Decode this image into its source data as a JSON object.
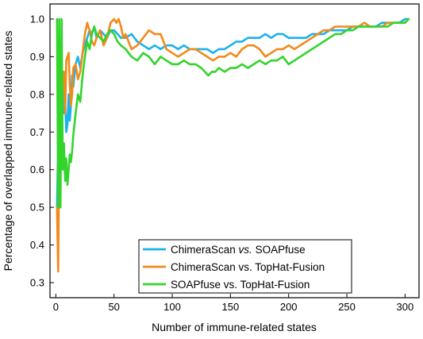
{
  "chart_data": {
    "type": "line",
    "xlabel": "Number of immune-related states",
    "ylabel": "Percentage of overlapped immune-related states",
    "xlim": [
      -5,
      312
    ],
    "ylim": [
      0.26,
      1.04
    ],
    "xticks": [
      0,
      50,
      100,
      150,
      200,
      250,
      300
    ],
    "yticks": [
      0.3,
      0.4,
      0.5,
      0.6,
      0.7,
      0.8,
      0.9,
      1.0
    ],
    "ytick_labels": [
      "0.3",
      "0.4",
      "0.5",
      "0.6",
      "0.7",
      "0.8",
      "0.9",
      "1.0"
    ],
    "grid": false,
    "legend_position": "bottom-right",
    "series": [
      {
        "name": "ChimeraScan vs. SOAPfuse",
        "legend_parts": [
          {
            "text": "ChimeraScan ",
            "italic": false
          },
          {
            "text": "vs.",
            "italic": true
          },
          {
            "text": " SOAPfuse",
            "italic": false
          }
        ],
        "color": "#1ab2ec",
        "x": [
          1,
          2,
          3,
          4,
          5,
          6,
          7,
          8,
          9,
          10,
          11,
          12,
          13,
          14,
          15,
          17,
          19,
          21,
          23,
          25,
          27,
          29,
          31,
          33,
          35,
          38,
          41,
          44,
          47,
          50,
          53,
          56,
          60,
          65,
          70,
          75,
          80,
          85,
          90,
          95,
          100,
          105,
          110,
          115,
          120,
          125,
          130,
          135,
          140,
          145,
          150,
          155,
          160,
          165,
          170,
          175,
          180,
          185,
          190,
          195,
          200,
          205,
          210,
          215,
          220,
          225,
          230,
          235,
          240,
          245,
          250,
          255,
          260,
          265,
          270,
          275,
          280,
          285,
          290,
          295,
          300,
          303
        ],
        "values": [
          0.5,
          0.67,
          0.75,
          0.8,
          0.83,
          0.86,
          0.75,
          0.78,
          0.7,
          0.72,
          0.8,
          0.73,
          0.77,
          0.85,
          0.82,
          0.88,
          0.9,
          0.87,
          0.91,
          0.93,
          0.95,
          0.97,
          0.96,
          0.98,
          0.95,
          0.97,
          0.96,
          0.95,
          0.97,
          0.97,
          0.96,
          0.95,
          0.95,
          0.96,
          0.94,
          0.93,
          0.92,
          0.93,
          0.92,
          0.93,
          0.93,
          0.92,
          0.93,
          0.92,
          0.92,
          0.92,
          0.92,
          0.91,
          0.92,
          0.92,
          0.93,
          0.94,
          0.94,
          0.95,
          0.95,
          0.95,
          0.96,
          0.95,
          0.96,
          0.96,
          0.95,
          0.95,
          0.95,
          0.95,
          0.96,
          0.96,
          0.96,
          0.97,
          0.97,
          0.97,
          0.97,
          0.98,
          0.98,
          0.98,
          0.98,
          0.98,
          0.99,
          0.99,
          0.99,
          0.99,
          1.0,
          1.0
        ]
      },
      {
        "name": "ChimeraScan vs. TopHat-Fusion",
        "legend_parts": [
          {
            "text": "ChimeraScan vs. TopHat-Fusion",
            "italic": false
          }
        ],
        "color": "#f28a1a",
        "x": [
          1,
          2,
          3,
          4,
          5,
          6,
          7,
          8,
          9,
          10,
          11,
          12,
          13,
          14,
          15,
          17,
          19,
          21,
          23,
          25,
          27,
          29,
          31,
          33,
          35,
          38,
          41,
          44,
          47,
          50,
          52,
          54,
          56,
          58,
          60,
          65,
          70,
          75,
          80,
          85,
          90,
          95,
          100,
          105,
          110,
          115,
          120,
          125,
          130,
          135,
          140,
          145,
          150,
          155,
          160,
          165,
          170,
          175,
          180,
          185,
          190,
          195,
          200,
          205,
          210,
          215,
          220,
          225,
          230,
          235,
          240,
          245,
          250,
          255,
          260,
          265,
          270,
          275,
          280,
          285,
          290,
          295,
          300,
          303
        ],
        "values": [
          0.5,
          0.33,
          0.67,
          0.75,
          0.8,
          0.83,
          0.86,
          0.75,
          0.89,
          0.9,
          0.91,
          0.83,
          0.77,
          0.8,
          0.87,
          0.88,
          0.84,
          0.86,
          0.91,
          0.96,
          0.99,
          0.97,
          0.94,
          0.93,
          0.95,
          0.97,
          0.93,
          0.95,
          0.99,
          1.0,
          0.99,
          1.0,
          0.98,
          0.95,
          0.96,
          0.92,
          0.93,
          0.95,
          0.97,
          0.96,
          0.96,
          0.92,
          0.91,
          0.9,
          0.91,
          0.92,
          0.92,
          0.91,
          0.9,
          0.89,
          0.9,
          0.9,
          0.91,
          0.9,
          0.92,
          0.93,
          0.93,
          0.92,
          0.9,
          0.91,
          0.92,
          0.92,
          0.93,
          0.92,
          0.93,
          0.94,
          0.95,
          0.96,
          0.97,
          0.97,
          0.98,
          0.98,
          0.98,
          0.98,
          0.98,
          0.99,
          0.98,
          0.98,
          0.98,
          0.99,
          0.99,
          0.99,
          0.99,
          1.0
        ]
      },
      {
        "name": "SOAPfuse vs. TopHat-Fusion",
        "legend_parts": [
          {
            "text": "SOAPfuse vs. TopHat-Fusion",
            "italic": false
          }
        ],
        "color": "#33d42c",
        "x": [
          1,
          2,
          3,
          4,
          5,
          6,
          7,
          8,
          9,
          10,
          11,
          12,
          13,
          14,
          15,
          17,
          19,
          21,
          23,
          25,
          27,
          29,
          31,
          33,
          35,
          38,
          41,
          44,
          47,
          50,
          53,
          56,
          60,
          65,
          70,
          75,
          80,
          85,
          90,
          95,
          100,
          105,
          110,
          115,
          120,
          125,
          128,
          131,
          134,
          137,
          140,
          145,
          150,
          155,
          160,
          165,
          170,
          175,
          180,
          185,
          190,
          195,
          200,
          205,
          210,
          215,
          220,
          225,
          230,
          235,
          240,
          245,
          250,
          255,
          260,
          265,
          270,
          275,
          280,
          285,
          290,
          295,
          300,
          303
        ],
        "values": [
          1.0,
          0.5,
          1.0,
          0.5,
          1.0,
          0.6,
          0.67,
          0.57,
          0.63,
          0.56,
          0.6,
          0.64,
          0.62,
          0.65,
          0.69,
          0.75,
          0.8,
          0.78,
          0.85,
          0.9,
          0.94,
          0.92,
          0.96,
          0.98,
          0.96,
          0.95,
          0.94,
          0.96,
          0.97,
          0.96,
          0.94,
          0.93,
          0.92,
          0.9,
          0.89,
          0.91,
          0.9,
          0.88,
          0.9,
          0.89,
          0.88,
          0.88,
          0.89,
          0.88,
          0.88,
          0.87,
          0.86,
          0.85,
          0.86,
          0.86,
          0.87,
          0.86,
          0.87,
          0.87,
          0.88,
          0.87,
          0.88,
          0.89,
          0.88,
          0.89,
          0.89,
          0.9,
          0.88,
          0.89,
          0.9,
          0.91,
          0.92,
          0.93,
          0.94,
          0.95,
          0.96,
          0.96,
          0.97,
          0.97,
          0.98,
          0.98,
          0.98,
          0.98,
          0.98,
          0.98,
          0.99,
          0.99,
          0.99,
          1.0
        ]
      }
    ]
  }
}
